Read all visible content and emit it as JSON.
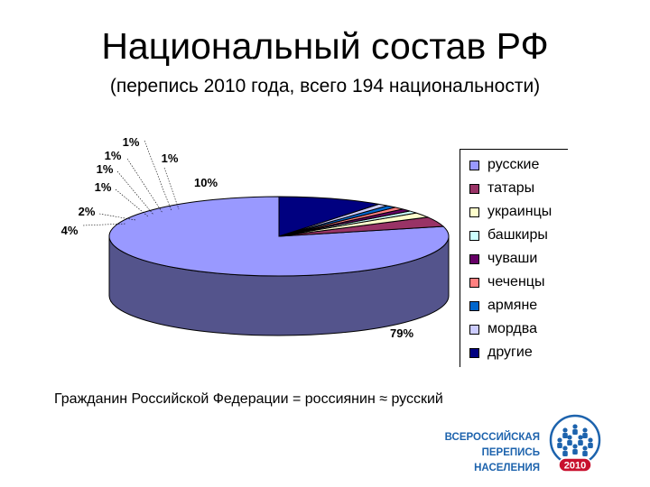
{
  "title": "Национальный состав РФ",
  "subtitle": "(перепись 2010 года, всего 194 национальности)",
  "chart_data": {
    "type": "pie",
    "categories": [
      "русские",
      "татары",
      "украинцы",
      "башкиры",
      "чуваши",
      "чеченцы",
      "армяне",
      "мордва",
      "другие"
    ],
    "values": [
      79,
      4,
      2,
      1,
      1,
      1,
      1,
      1,
      10
    ],
    "data_labels": [
      "79%",
      "4%",
      "2%",
      "1%",
      "1%",
      "1%",
      "1%",
      "1%",
      "10%"
    ],
    "colors": [
      "#9999ff",
      "#993366",
      "#ffffcc",
      "#ccffff",
      "#660066",
      "#ff8080",
      "#0066cc",
      "#ccccff",
      "#000080"
    ],
    "legend_position": "right",
    "three_d": true
  },
  "footer_text": "Гражданин Российской Федерации = россиянин ≈ русский",
  "logo": {
    "line1": "ВСЕРОССИЙСКАЯ",
    "line2": "ПЕРЕПИСЬ НАСЕЛЕНИЯ",
    "year": "2010",
    "color": "#1d63ad",
    "badge_color": "#c8102e"
  }
}
